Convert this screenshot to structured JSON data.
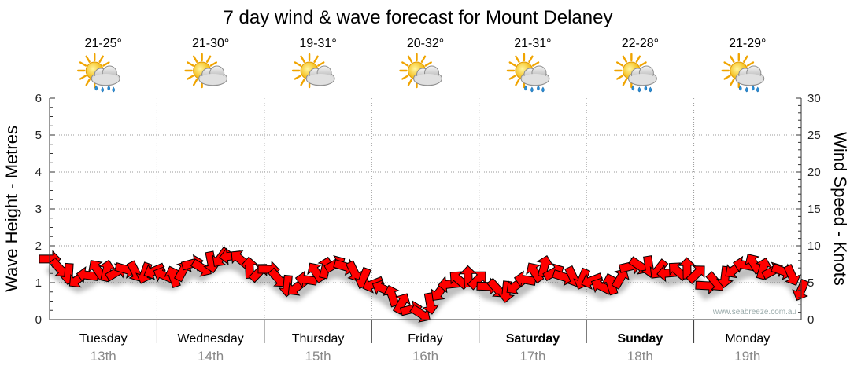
{
  "chart_data": {
    "type": "line",
    "title": "7 day wind & wave forecast for Mount Delaney",
    "ylabel_left": "Wave Height - Metres",
    "ylabel_right": "Wind Speed - Knots",
    "ylim_left": [
      0,
      6
    ],
    "ylim_right": [
      0,
      30
    ],
    "yticks_left": [
      "0",
      "1",
      "2",
      "3",
      "4",
      "5",
      "6"
    ],
    "yticks_right": [
      "0",
      "5",
      "10",
      "15",
      "20",
      "25",
      "30"
    ],
    "grid": true,
    "watermark": "www.seabreeze.com.au",
    "days": [
      {
        "name": "Tuesday",
        "date": "13th",
        "bold": false,
        "temp": "21-25°",
        "icon": "sun-cloud-rain-icon"
      },
      {
        "name": "Wednesday",
        "date": "14th",
        "bold": false,
        "temp": "21-30°",
        "icon": "sun-cloud-icon"
      },
      {
        "name": "Thursday",
        "date": "15th",
        "bold": false,
        "temp": "19-31°",
        "icon": "sun-cloud-icon"
      },
      {
        "name": "Friday",
        "date": "16th",
        "bold": false,
        "temp": "20-32°",
        "icon": "sun-cloud-icon"
      },
      {
        "name": "Saturday",
        "date": "17th",
        "bold": true,
        "temp": "21-31°",
        "icon": "sun-cloud-rain-icon"
      },
      {
        "name": "Sunday",
        "date": "18th",
        "bold": true,
        "temp": "22-28°",
        "icon": "sun-cloud-rain-icon"
      },
      {
        "name": "Monday",
        "date": "19th",
        "bold": false,
        "temp": "21-29°",
        "icon": "sun-cloud-rain-icon"
      }
    ],
    "series": [
      {
        "name": "Wind Speed (knots)",
        "color": "#ff0000",
        "values": [
          8.2,
          7.0,
          6.2,
          5.5,
          6.0,
          6.8,
          6.6,
          6.4,
          6.8,
          6.5,
          6.3,
          6.6,
          6.0,
          5.8,
          6.6,
          7.6,
          7.0,
          7.8,
          8.4,
          8.6,
          8.2,
          7.0,
          6.4,
          6.8,
          5.6,
          4.6,
          4.4,
          5.4,
          6.4,
          7.0,
          7.5,
          7.2,
          6.5,
          5.6,
          4.8,
          4.2,
          3.2,
          2.2,
          1.4,
          0.8,
          2.2,
          3.8,
          4.8,
          5.4,
          5.8,
          5.4,
          4.5,
          4.2,
          3.8,
          4.6,
          5.4,
          6.4,
          7.2,
          6.4,
          5.8,
          5.8,
          5.5,
          5.3,
          4.5,
          4.8,
          5.6,
          7.2,
          7.3,
          7.2,
          6.8,
          6.3,
          6.6,
          6.9,
          6.2,
          4.6,
          5.1,
          5.8,
          6.8,
          7.4,
          7.6,
          6.9,
          6.6,
          6.6,
          6.0,
          4.0
        ]
      }
    ]
  }
}
